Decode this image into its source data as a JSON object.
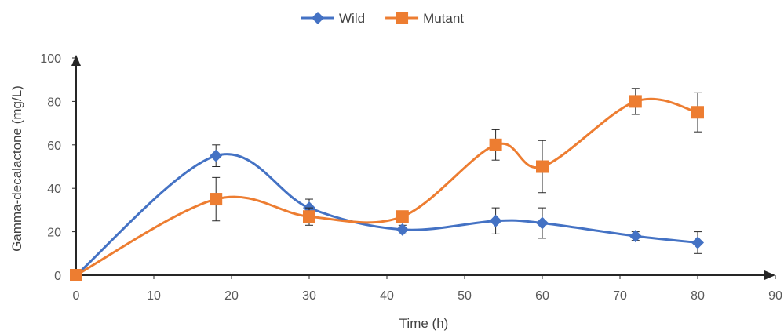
{
  "chart_data": {
    "type": "line",
    "title": "",
    "xlabel": "Time (h)",
    "ylabel": "Gamma-decalactone (mg/L)",
    "xlim": [
      0,
      90
    ],
    "ylim": [
      0,
      100
    ],
    "xticks": [
      0,
      10,
      20,
      30,
      40,
      50,
      60,
      70,
      80,
      90
    ],
    "yticks": [
      0,
      20,
      40,
      60,
      80,
      100
    ],
    "grid": false,
    "legend_position": "top",
    "smooth": true,
    "series": [
      {
        "name": "Wild",
        "color": "#4472C4",
        "marker": "diamond",
        "x": [
          0,
          18,
          30,
          42,
          54,
          60,
          72,
          80
        ],
        "y": [
          0,
          55,
          31,
          21,
          25,
          24,
          18,
          15
        ],
        "err": [
          0,
          5,
          4,
          2,
          6,
          7,
          2,
          5
        ]
      },
      {
        "name": "Mutant",
        "color": "#ED7D31",
        "marker": "square",
        "x": [
          0,
          18,
          30,
          42,
          54,
          60,
          72,
          80
        ],
        "y": [
          0,
          35,
          27,
          27,
          60,
          50,
          80,
          75
        ],
        "err": [
          0,
          10,
          4,
          2,
          7,
          12,
          6,
          9
        ]
      }
    ]
  }
}
